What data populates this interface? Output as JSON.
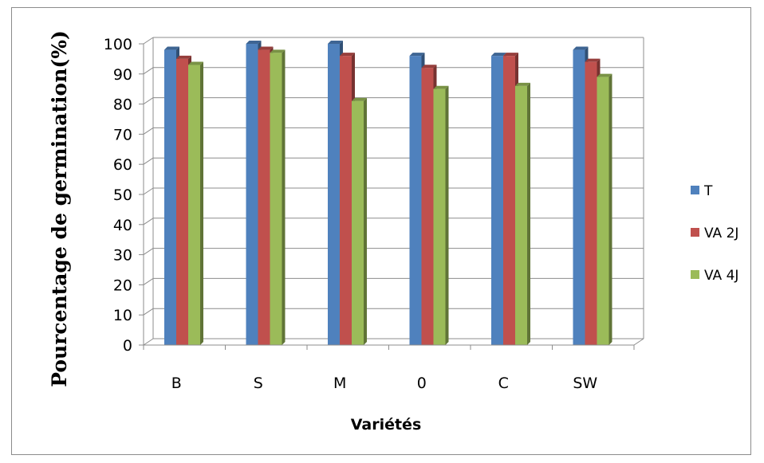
{
  "chart_data": {
    "type": "bar",
    "title": "",
    "xlabel": "Variétés",
    "ylabel": "Pourcentage de germination(%)",
    "categories": [
      "B",
      "S",
      "M",
      "0",
      "C",
      "SW"
    ],
    "ylim": [
      0,
      100
    ],
    "yticks": [
      0,
      10,
      20,
      30,
      40,
      50,
      60,
      70,
      80,
      90,
      100
    ],
    "grid": true,
    "legend_position": "right",
    "series": [
      {
        "name": "T",
        "color": "#4f81bd",
        "values": [
          98,
          100,
          100,
          96,
          96,
          98
        ]
      },
      {
        "name": "VA 2J",
        "color": "#c0504d",
        "values": [
          95,
          98,
          96,
          92,
          96,
          94
        ]
      },
      {
        "name": "VA 4J",
        "color": "#9bbb59",
        "values": [
          93,
          97,
          81,
          85,
          86,
          89
        ]
      }
    ]
  }
}
